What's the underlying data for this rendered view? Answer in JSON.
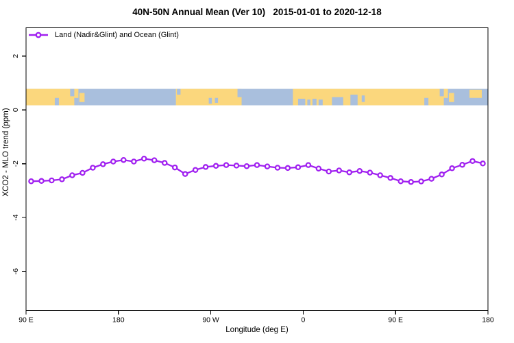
{
  "page": {
    "background": "#FFFFFF"
  },
  "header": {
    "title": "40N-50N Annual Mean (Ver 10)   2015-01-01 to 2020-12-18"
  },
  "legend": {
    "label": "Land (Nadir&Glint) and Ocean (Glint)",
    "marker": "open-circle-on-line",
    "color": "#A020F0"
  },
  "chart_data": {
    "type": "line",
    "title": "40N-50N Annual Mean (Ver 10)   2015-01-01 to 2020-12-18",
    "xlabel": "Longitude (deg E)",
    "ylabel": "XCO2 - MLO trend (ppm)",
    "legend_position": "top-left",
    "grid": false,
    "axis_wrap": "x axis spans 450 deg of longitude: 90E -> 180 -> 90W -> 0 -> 90E -> 180",
    "xlim": [
      90,
      540
    ],
    "ylim": [
      -7.45,
      3.05
    ],
    "x_ticks": [
      {
        "pos": 90,
        "label": "90 E"
      },
      {
        "pos": 180,
        "label": "180"
      },
      {
        "pos": 270,
        "label": "90 W"
      },
      {
        "pos": 360,
        "label": "0"
      },
      {
        "pos": 450,
        "label": "90 E"
      },
      {
        "pos": 540,
        "label": "180"
      }
    ],
    "y_ticks": [
      {
        "pos": 2,
        "label": "2"
      },
      {
        "pos": 0,
        "label": "0"
      },
      {
        "pos": -2,
        "label": "-2"
      },
      {
        "pos": -4,
        "label": "-4"
      },
      {
        "pos": -6,
        "label": "-6"
      }
    ],
    "series": [
      {
        "name": "Land (Nadir&Glint) and Ocean (Glint)",
        "color": "#A020F0",
        "marker": "open-circle",
        "x": [
          95,
          105,
          115,
          125,
          135,
          145,
          155,
          165,
          175,
          185,
          195,
          205,
          215,
          225,
          235,
          245,
          255,
          265,
          275,
          285,
          295,
          305,
          315,
          325,
          335,
          345,
          355,
          365,
          375,
          385,
          395,
          405,
          415,
          425,
          435,
          445,
          455,
          465,
          475,
          485,
          495,
          505,
          515,
          525,
          535
        ],
        "y": [
          -2.65,
          -2.64,
          -2.62,
          -2.58,
          -2.43,
          -2.34,
          -2.15,
          -2.02,
          -1.92,
          -1.86,
          -1.92,
          -1.81,
          -1.87,
          -1.97,
          -2.14,
          -2.38,
          -2.23,
          -2.12,
          -2.08,
          -2.05,
          -2.07,
          -2.09,
          -2.05,
          -2.1,
          -2.15,
          -2.16,
          -2.13,
          -2.05,
          -2.18,
          -2.29,
          -2.25,
          -2.32,
          -2.27,
          -2.33,
          -2.43,
          -2.53,
          -2.65,
          -2.68,
          -2.66,
          -2.56,
          -2.4,
          -2.17,
          -2.04,
          -1.9,
          -1.99
        ]
      }
    ],
    "map_strip": {
      "description": "40N-50N latitude band world-map ribbon drawn across the plot",
      "land_color": "#FBD77D",
      "ocean_color": "#A9BFDD",
      "value_top": 0.78,
      "value_bottom": 0.17,
      "ocean_extent": [
        90,
        540
      ],
      "land_segments": [
        [
          90,
          141
        ],
        [
          236,
          300
        ],
        [
          350,
          501
        ]
      ],
      "water_patches": [
        [
          118,
          122,
          0.55,
          1
        ],
        [
          133,
          137,
          0,
          0.45
        ],
        [
          137,
          141,
          0.55,
          1
        ],
        [
          237,
          240.5,
          0,
          0.35
        ],
        [
          268,
          271,
          0.55,
          0.9
        ],
        [
          274,
          277,
          0.55,
          0.85
        ],
        [
          296,
          300,
          0,
          0.5
        ],
        [
          355,
          362,
          0.6,
          1
        ],
        [
          364,
          367,
          0.65,
          1
        ],
        [
          369,
          373,
          0.6,
          1
        ],
        [
          375,
          379,
          0.65,
          1
        ],
        [
          388,
          399,
          0.5,
          1
        ],
        [
          406,
          413,
          0.35,
          1
        ],
        [
          417,
          420,
          0.4,
          0.8
        ],
        [
          478,
          482,
          0.55,
          1
        ],
        [
          493,
          497,
          0,
          0.45
        ],
        [
          497,
          501,
          0.55,
          1
        ]
      ],
      "island_patches": [
        [
          142,
          147,
          0.25,
          0.8
        ],
        [
          502,
          507,
          0.25,
          0.8
        ],
        [
          522,
          534,
          0.05,
          0.55
        ]
      ]
    }
  }
}
